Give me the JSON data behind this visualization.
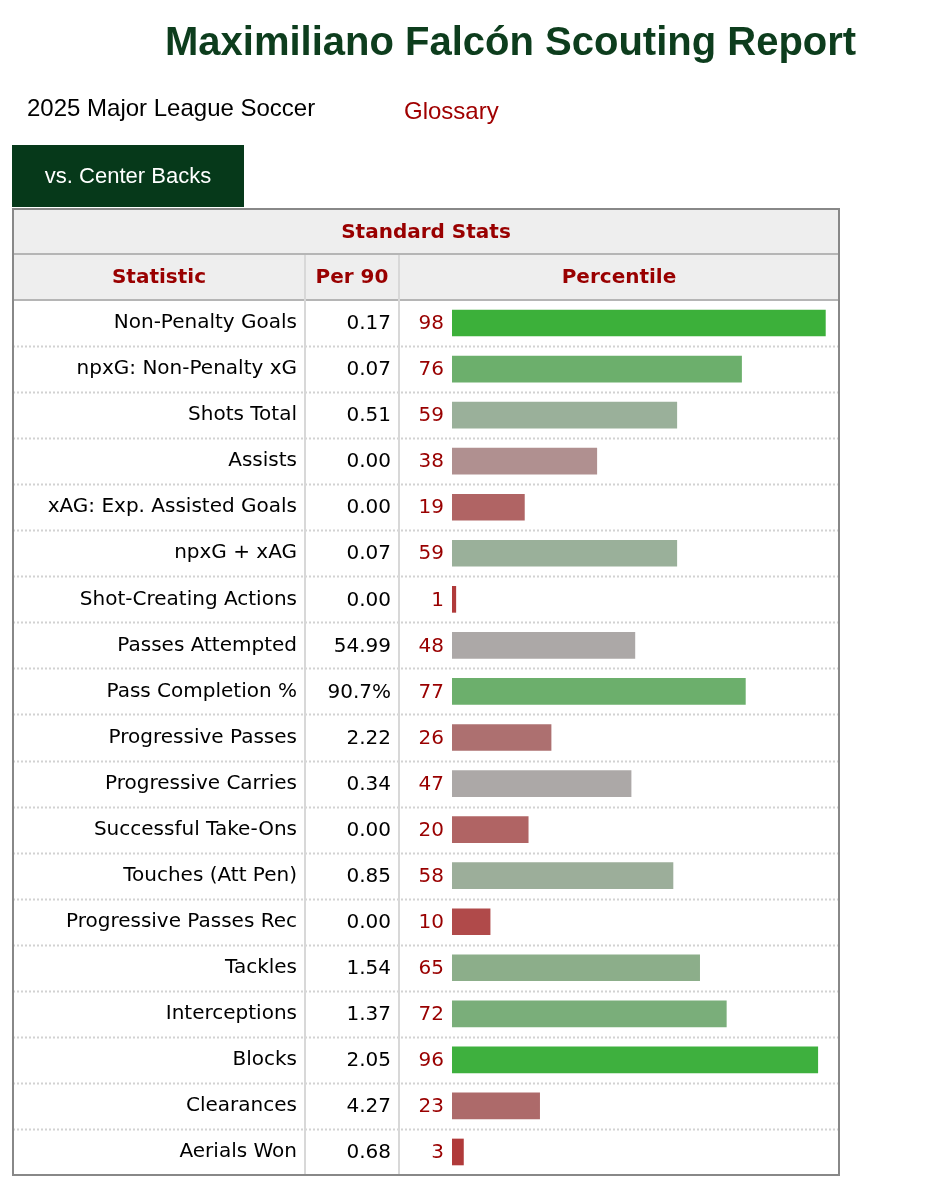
{
  "chart_data": {
    "type": "bar",
    "orientation": "horizontal",
    "title": "Maximiliano Falcón Scouting Report",
    "subtitle": "2025 Major League Soccer",
    "categories": [
      "Non-Penalty Goals",
      "npxG: Non-Penalty xG",
      "Shots Total",
      "Assists",
      "xAG: Exp. Assisted Goals",
      "npxG + xAG",
      "Shot-Creating Actions",
      "Passes Attempted",
      "Pass Completion %",
      "Progressive Passes",
      "Progressive Carries",
      "Successful Take-Ons",
      "Touches (Att Pen)",
      "Progressive Passes Rec",
      "Tackles",
      "Interceptions",
      "Blocks",
      "Clearances",
      "Aerials Won"
    ],
    "values": [
      98,
      76,
      59,
      38,
      19,
      59,
      1,
      48,
      77,
      26,
      47,
      20,
      58,
      10,
      65,
      72,
      96,
      23,
      3
    ],
    "colors": [
      "#3cb03a",
      "#6caf6c",
      "#9ab09a",
      "#b09090",
      "#b06464",
      "#9ab09a",
      "#b03a3a",
      "#aca8a7",
      "#6caf6c",
      "#ad7070",
      "#aca8a7",
      "#b06464",
      "#9cae9a",
      "#b04a4a",
      "#8cae8a",
      "#7aae7a",
      "#3eb03e",
      "#ad6a6a",
      "#b03a3a"
    ],
    "tick_labels": "y",
    "data_labels": true,
    "annotations": [
      "Glossary",
      "vs. Center Backs",
      "Standard Stats",
      "Statistic",
      "Per 90",
      "Percentile",
      "0.17",
      "0.07",
      "0.51",
      "0.00",
      "0.00",
      "0.07",
      "0.00",
      "54.99",
      "90.7%",
      "2.22",
      "0.34",
      "0.00",
      "0.85",
      "0.00",
      "1.54",
      "1.37",
      "2.05",
      "4.27",
      "0.68"
    ]
  }
}
